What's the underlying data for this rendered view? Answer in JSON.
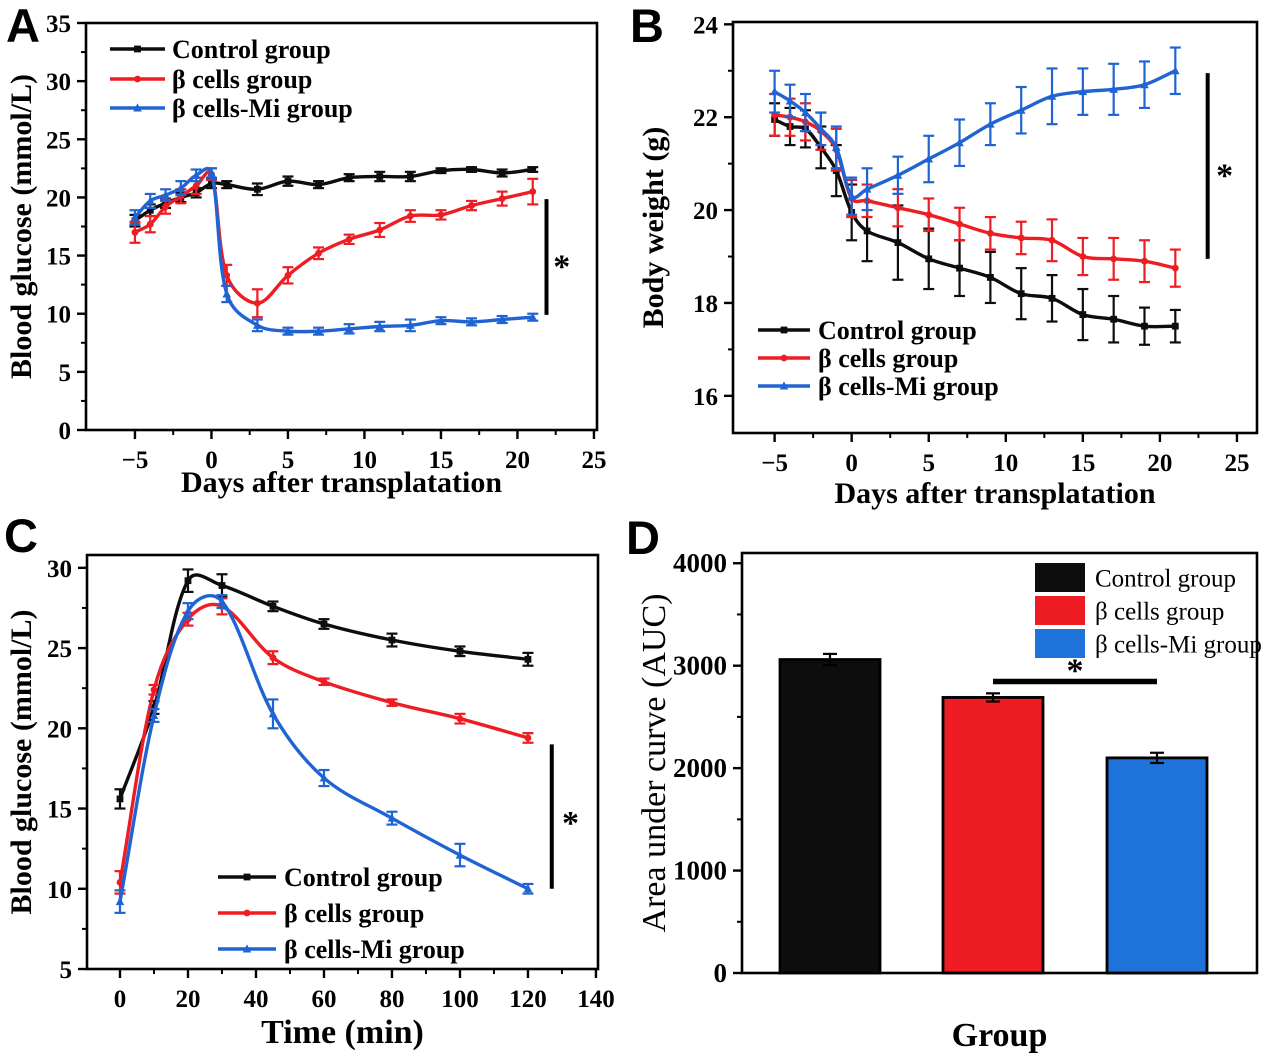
{
  "colors": {
    "black": "#0d0d0d",
    "red": "#ee1c23",
    "blue": "#2064d4",
    "blueBar": "#1f72d9",
    "axis": "#000000",
    "background": "#ffffff"
  },
  "chart_data": [
    {
      "id": "A",
      "panel_letter": "A",
      "type": "line",
      "xlabel": "Days after transplatation",
      "ylabel": "Blood glucose (mmol/L)",
      "xlim": [
        -8.2,
        25.2
      ],
      "ylim": [
        0,
        35
      ],
      "xticks": [
        -5,
        0,
        5,
        10,
        15,
        20,
        25
      ],
      "yticks": [
        0,
        5,
        10,
        15,
        20,
        25,
        30,
        35
      ],
      "x": [
        -5,
        -4,
        -3,
        -2,
        -1,
        0,
        1,
        3,
        5,
        7,
        9,
        11,
        13,
        15,
        17,
        19,
        21
      ],
      "series": [
        {
          "name": "Control group",
          "color": "black",
          "marker": "square",
          "values": [
            18.0,
            18.9,
            19.5,
            20.0,
            20.4,
            21.2,
            21.1,
            20.7,
            21.4,
            21.1,
            21.7,
            21.8,
            21.8,
            22.3,
            22.4,
            22.1,
            22.4
          ],
          "errors": [
            0.5,
            0.5,
            0.4,
            0.4,
            0.4,
            0.4,
            0.3,
            0.5,
            0.4,
            0.3,
            0.3,
            0.4,
            0.4,
            0.2,
            0.2,
            0.3,
            0.2
          ]
        },
        {
          "name": "β cells group",
          "color": "red",
          "marker": "circle",
          "values": [
            17.0,
            17.7,
            19.2,
            20.1,
            21.0,
            22.0,
            13.3,
            10.9,
            13.3,
            15.2,
            16.4,
            17.2,
            18.4,
            18.5,
            19.3,
            19.9,
            20.5
          ],
          "errors": [
            0.9,
            0.7,
            0.6,
            0.6,
            0.7,
            0.5,
            0.9,
            1.2,
            0.7,
            0.5,
            0.4,
            0.6,
            0.5,
            0.4,
            0.4,
            0.6,
            1.1
          ]
        },
        {
          "name": "β cells-Mi group",
          "color": "blue",
          "marker": "triangle",
          "values": [
            18.3,
            19.7,
            20.2,
            20.8,
            21.9,
            22.1,
            11.7,
            9.0,
            8.5,
            8.5,
            8.7,
            8.9,
            9.0,
            9.4,
            9.3,
            9.5,
            9.7
          ],
          "errors": [
            0.6,
            0.6,
            0.5,
            0.6,
            0.5,
            0.4,
            0.7,
            0.5,
            0.3,
            0.3,
            0.4,
            0.4,
            0.5,
            0.3,
            0.3,
            0.3,
            0.3
          ]
        }
      ],
      "sig": {
        "line_x": 21.9,
        "y1": 9.9,
        "y2": 19.85,
        "star_x": 22.9,
        "star_y": 14.5,
        "star": "*"
      }
    },
    {
      "id": "B",
      "panel_letter": "B",
      "type": "line",
      "xlabel": "Days after transplatation",
      "ylabel": "Body weight (g)",
      "xlim": [
        -7.7,
        26.3
      ],
      "ylim": [
        15.2,
        24.05
      ],
      "xticks": [
        -5,
        0,
        5,
        10,
        15,
        20,
        25
      ],
      "yticks": [
        16,
        18,
        20,
        22,
        24
      ],
      "x": [
        -5,
        -4,
        -3,
        -2,
        -1,
        0,
        1,
        3,
        5,
        7,
        9,
        11,
        13,
        15,
        17,
        19,
        21
      ],
      "series": [
        {
          "name": "Control group",
          "color": "black",
          "marker": "square",
          "values": [
            21.95,
            21.8,
            21.75,
            21.35,
            20.85,
            19.95,
            19.55,
            19.3,
            18.95,
            18.75,
            18.55,
            18.2,
            18.1,
            17.75,
            17.65,
            17.5,
            17.5
          ],
          "errors": [
            0.35,
            0.4,
            0.4,
            0.45,
            0.55,
            0.6,
            0.65,
            0.8,
            0.65,
            0.6,
            0.55,
            0.55,
            0.5,
            0.55,
            0.5,
            0.4,
            0.35
          ]
        },
        {
          "name": "β cells group",
          "color": "red",
          "marker": "circle",
          "values": [
            22.05,
            22.0,
            21.9,
            21.7,
            21.3,
            20.25,
            20.2,
            20.05,
            19.9,
            19.7,
            19.5,
            19.4,
            19.35,
            19.0,
            18.95,
            18.9,
            18.75
          ],
          "errors": [
            0.45,
            0.4,
            0.4,
            0.4,
            0.45,
            0.4,
            0.35,
            0.4,
            0.35,
            0.35,
            0.35,
            0.35,
            0.45,
            0.4,
            0.45,
            0.45,
            0.4
          ]
        },
        {
          "name": "β cells-Mi group",
          "color": "blue",
          "marker": "triangle",
          "values": [
            22.55,
            22.35,
            22.1,
            21.75,
            21.35,
            20.3,
            20.45,
            20.75,
            21.1,
            21.45,
            21.85,
            22.15,
            22.45,
            22.55,
            22.6,
            22.7,
            23.0
          ],
          "errors": [
            0.45,
            0.35,
            0.4,
            0.35,
            0.45,
            0.4,
            0.45,
            0.4,
            0.5,
            0.5,
            0.45,
            0.5,
            0.6,
            0.5,
            0.55,
            0.5,
            0.5
          ]
        }
      ],
      "sig": {
        "line_x": 23.1,
        "y1": 18.95,
        "y2": 22.95,
        "star_x": 24.2,
        "star_y": 20.85,
        "star": "*"
      }
    },
    {
      "id": "C",
      "panel_letter": "C",
      "type": "line",
      "xlabel": "Time (min)",
      "ylabel": "Blood glucose (mmol/L)",
      "xlim": [
        -9.7,
        140.6
      ],
      "ylim": [
        5,
        30.8
      ],
      "xticks": [
        0,
        20,
        40,
        60,
        80,
        100,
        120,
        140
      ],
      "yticks": [
        5,
        10,
        15,
        20,
        25,
        30
      ],
      "x": [
        0,
        10,
        20,
        30,
        45,
        60,
        80,
        100,
        120
      ],
      "series": [
        {
          "name": "Control group",
          "color": "black",
          "marker": "square",
          "values": [
            15.6,
            21.3,
            29.2,
            28.9,
            27.6,
            26.5,
            25.5,
            24.8,
            24.3
          ],
          "errors": [
            0.6,
            0.4,
            0.7,
            0.7,
            0.3,
            0.3,
            0.4,
            0.3,
            0.4
          ]
        },
        {
          "name": "β cells group",
          "color": "red",
          "marker": "circle",
          "values": [
            10.4,
            22.4,
            26.8,
            27.6,
            24.4,
            22.9,
            21.6,
            20.6,
            19.4
          ],
          "errors": [
            0.7,
            0.3,
            0.4,
            0.5,
            0.4,
            0.2,
            0.2,
            0.3,
            0.3
          ]
        },
        {
          "name": "β cells-Mi group",
          "color": "blue",
          "marker": "triangle",
          "values": [
            9.2,
            20.8,
            27.3,
            27.9,
            20.9,
            16.9,
            14.4,
            12.1,
            10.0
          ],
          "errors": [
            0.7,
            0.4,
            0.5,
            0.4,
            0.9,
            0.5,
            0.4,
            0.7,
            0.3
          ]
        }
      ],
      "sig": {
        "line_x": 127,
        "y1": 10.0,
        "y2": 19.0,
        "star_x": 132.5,
        "star_y": 14.4,
        "star": "*"
      }
    },
    {
      "id": "D",
      "panel_letter": "D",
      "type": "bar",
      "xlabel": "Group",
      "ylabel": "Area under curve (AUC)",
      "ylim": [
        0,
        4100
      ],
      "yticks": [
        0,
        1000,
        2000,
        3000,
        4000
      ],
      "categories": [
        "Control group",
        "β cells group",
        "β cells-Mi group"
      ],
      "values": [
        3060,
        2690,
        2100
      ],
      "errors": [
        55,
        40,
        50
      ],
      "bar_colors": [
        "black",
        "red",
        "blueBar"
      ],
      "legend": [
        "Control group",
        "β cells group",
        "β cells-Mi group"
      ],
      "legend_colors": [
        "black",
        "red",
        "blueBar"
      ],
      "sig": {
        "line_y": 2846,
        "from": 1,
        "to": 2,
        "star_y": 3000,
        "star": "*"
      }
    }
  ]
}
